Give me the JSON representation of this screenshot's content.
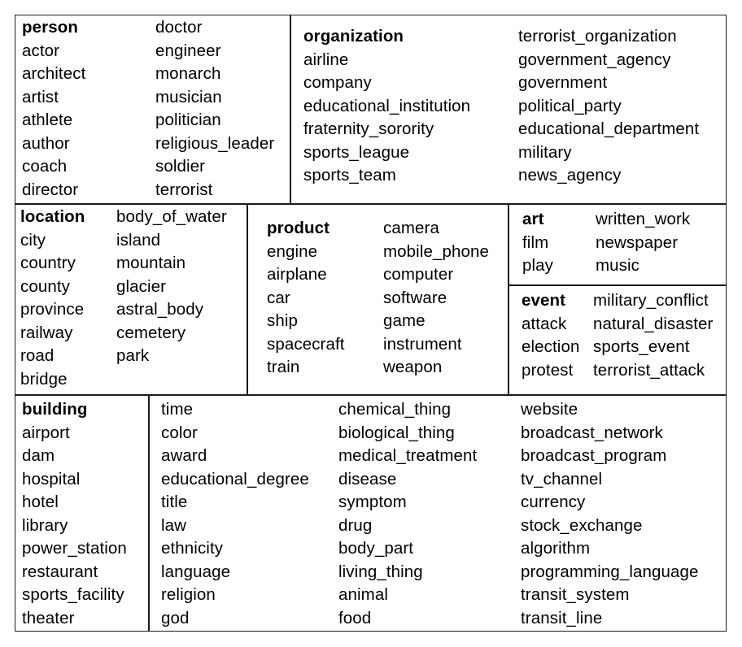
{
  "sections": {
    "person": {
      "col1": [
        "person",
        "actor",
        "architect",
        "artist",
        "athlete",
        "author",
        "coach",
        "director"
      ],
      "col2": [
        "doctor",
        "engineer",
        "monarch",
        "musician",
        "politician",
        "religious_leader",
        "soldier",
        "terrorist"
      ]
    },
    "organization": {
      "col1": [
        "organization",
        "airline",
        "company",
        "educational_institution",
        "fraternity_sorority",
        "sports_league",
        "sports_team"
      ],
      "col2": [
        "terrorist_organization",
        "government_agency",
        "government",
        "political_party",
        "educational_department",
        "military",
        "news_agency"
      ]
    },
    "location": {
      "col1": [
        "location",
        "city",
        "country",
        "county",
        "province",
        "railway",
        "road",
        "bridge"
      ],
      "col2": [
        "body_of_water",
        "island",
        "mountain",
        "glacier",
        "astral_body",
        "cemetery",
        "park"
      ]
    },
    "product": {
      "col1": [
        "product",
        "engine",
        "airplane",
        "car",
        "ship",
        "spacecraft",
        "train"
      ],
      "col2": [
        "camera",
        "mobile_phone",
        "computer",
        "software",
        "game",
        "instrument",
        "weapon"
      ]
    },
    "art": {
      "col1": [
        "art",
        "film",
        "play"
      ],
      "col2": [
        "written_work",
        "newspaper",
        "music"
      ]
    },
    "event": {
      "col1": [
        "event",
        "attack",
        "election",
        "protest"
      ],
      "col2": [
        "military_conflict",
        "natural_disaster",
        "sports_event",
        "terrorist_attack"
      ]
    },
    "building": {
      "col1": [
        "building",
        "airport",
        "dam",
        "hospital",
        "hotel",
        "library",
        "power_station",
        "restaurant",
        "sports_facility",
        "theater"
      ]
    },
    "misc": {
      "col1": [
        "time",
        "color",
        "award",
        "educational_degree",
        "title",
        "law",
        "ethnicity",
        "language",
        "religion",
        "god"
      ],
      "col2": [
        "chemical_thing",
        "biological_thing",
        "medical_treatment",
        "disease",
        "symptom",
        "drug",
        "body_part",
        "living_thing",
        "animal",
        "food"
      ],
      "col3": [
        "website",
        "broadcast_network",
        "broadcast_program",
        "tv_channel",
        "currency",
        "stock_exchange",
        "algorithm",
        "programming_language",
        "transit_system",
        "transit_line"
      ]
    }
  }
}
